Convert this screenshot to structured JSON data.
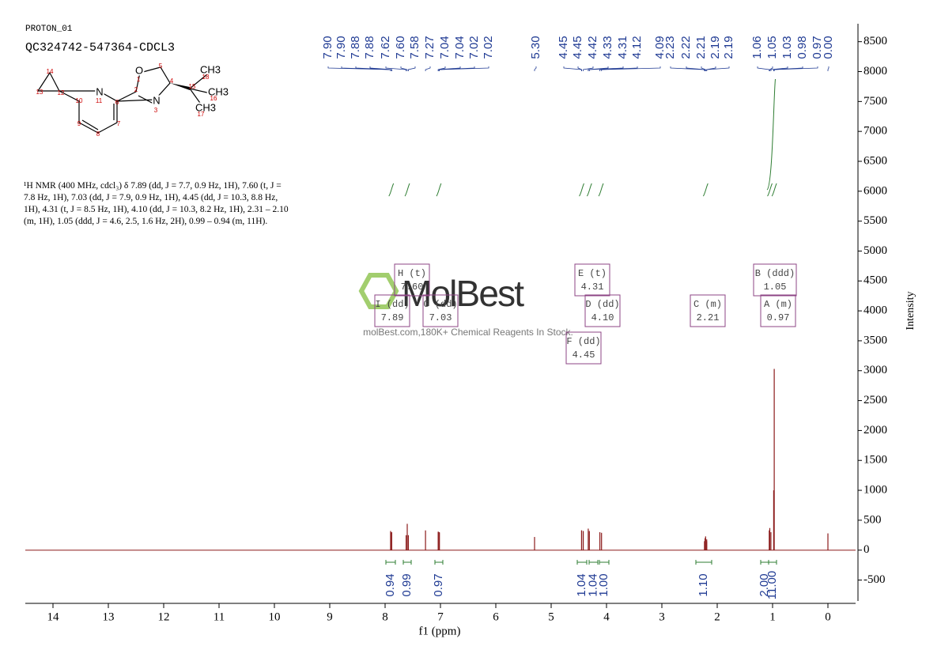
{
  "header": {
    "experiment": "PROTON_01",
    "sample": "QC324742-547364-CDCL3",
    "description": "¹H NMR (400 MHz, cdcl₃) δ 7.89 (dd, J = 7.7, 0.9 Hz, 1H), 7.60 (t, J = 7.8 Hz, 1H), 7.03 (dd, J = 7.9, 0.9 Hz, 1H), 4.45 (dd, J = 10.3, 8.8 Hz, 1H), 4.31 (t, J = 8.5 Hz, 1H), 4.10 (dd, J = 10.3, 8.2 Hz, 1H), 2.31 – 2.10 (m, 1H), 1.05 (ddd, J = 4.6, 2.5, 1.6 Hz, 2H), 0.99 – 0.94 (m, 11H)."
  },
  "structure": {
    "atoms": [
      "O",
      "1",
      "5",
      "4",
      "2",
      "N",
      "3",
      "15",
      "CH3",
      "18",
      "CH3",
      "16",
      "CH3",
      "17",
      "6",
      "N",
      "11",
      "10",
      "12",
      "13",
      "14",
      "9",
      "8",
      "7"
    ]
  },
  "watermark": {
    "logo": "MolBest",
    "tagline": "molBest.com,180K+ Chemical Reagents In Stock."
  },
  "chart_data": {
    "type": "nmr",
    "x_label": "f1 (ppm)",
    "y_label": "Intensity",
    "xlim": [
      14.5,
      -0.5
    ],
    "xticks": [
      14,
      13,
      12,
      11,
      10,
      9,
      8,
      7,
      6,
      5,
      4,
      3,
      2,
      1,
      0
    ],
    "ylim": [
      -850,
      8800
    ],
    "yticks": [
      -500,
      0,
      500,
      1000,
      1500,
      2000,
      2500,
      3000,
      3500,
      4000,
      4500,
      5000,
      5500,
      6000,
      6500,
      7000,
      7500,
      8000,
      8500
    ],
    "color": "#8b1a1a",
    "peaks": {
      "x": [
        7.9,
        7.9,
        7.88,
        7.88,
        7.62,
        7.6,
        7.58,
        7.27,
        7.04,
        7.04,
        7.02,
        7.02,
        5.3,
        4.45,
        4.45,
        4.42,
        4.33,
        4.31,
        4.12,
        4.09,
        2.23,
        2.22,
        2.21,
        2.19,
        2.19,
        1.06,
        1.05,
        1.03,
        0.98,
        0.97,
        0.0
      ],
      "values": [
        300,
        320,
        290,
        300,
        250,
        440,
        250,
        330,
        300,
        310,
        300,
        290,
        220,
        330,
        330,
        320,
        360,
        320,
        300,
        290,
        150,
        200,
        230,
        180,
        150,
        330,
        370,
        300,
        1000,
        3030,
        280
      ],
      "value_labels": [
        "7.90",
        "7.90",
        "7.88",
        "7.88",
        "7.62",
        "7.60",
        "7.58",
        "7.27",
        "7.04",
        "7.04",
        "7.02",
        "7.02",
        "5.30",
        "4.45",
        "4.45",
        "4.42",
        "4.33",
        "4.31",
        "4.12",
        "4.09",
        "2.23",
        "2.22",
        "2.21",
        "2.19",
        "2.19",
        "1.06",
        "1.05",
        "1.03",
        "0.98",
        "0.97",
        "0.00"
      ]
    },
    "integral_color": "#2e7d32",
    "integrals": {
      "x": [
        7.89,
        7.6,
        7.03,
        4.45,
        4.31,
        4.1,
        2.21,
        1.05,
        0.97
      ],
      "values": [
        0.94,
        0.99,
        0.97,
        1.04,
        1.04,
        1.0,
        1.1,
        2.0,
        11.0
      ],
      "value_labels": [
        "0.94",
        "0.99",
        "0.97",
        "1.04",
        "1.04",
        "1.00",
        "1.10",
        "2.00",
        "11.00"
      ]
    },
    "multiplets": [
      {
        "name": "H (t)",
        "shift": "7.60"
      },
      {
        "name": "I (dd)",
        "shift": "7.89"
      },
      {
        "name": "G (dd)",
        "shift": "7.03"
      },
      {
        "name": "E (t)",
        "shift": "4.31"
      },
      {
        "name": "D (dd)",
        "shift": "4.10"
      },
      {
        "name": "F (dd)",
        "shift": "4.45"
      },
      {
        "name": "C (m)",
        "shift": "2.21"
      },
      {
        "name": "B (ddd)",
        "shift": "1.05"
      },
      {
        "name": "A (m)",
        "shift": "0.97"
      }
    ]
  }
}
